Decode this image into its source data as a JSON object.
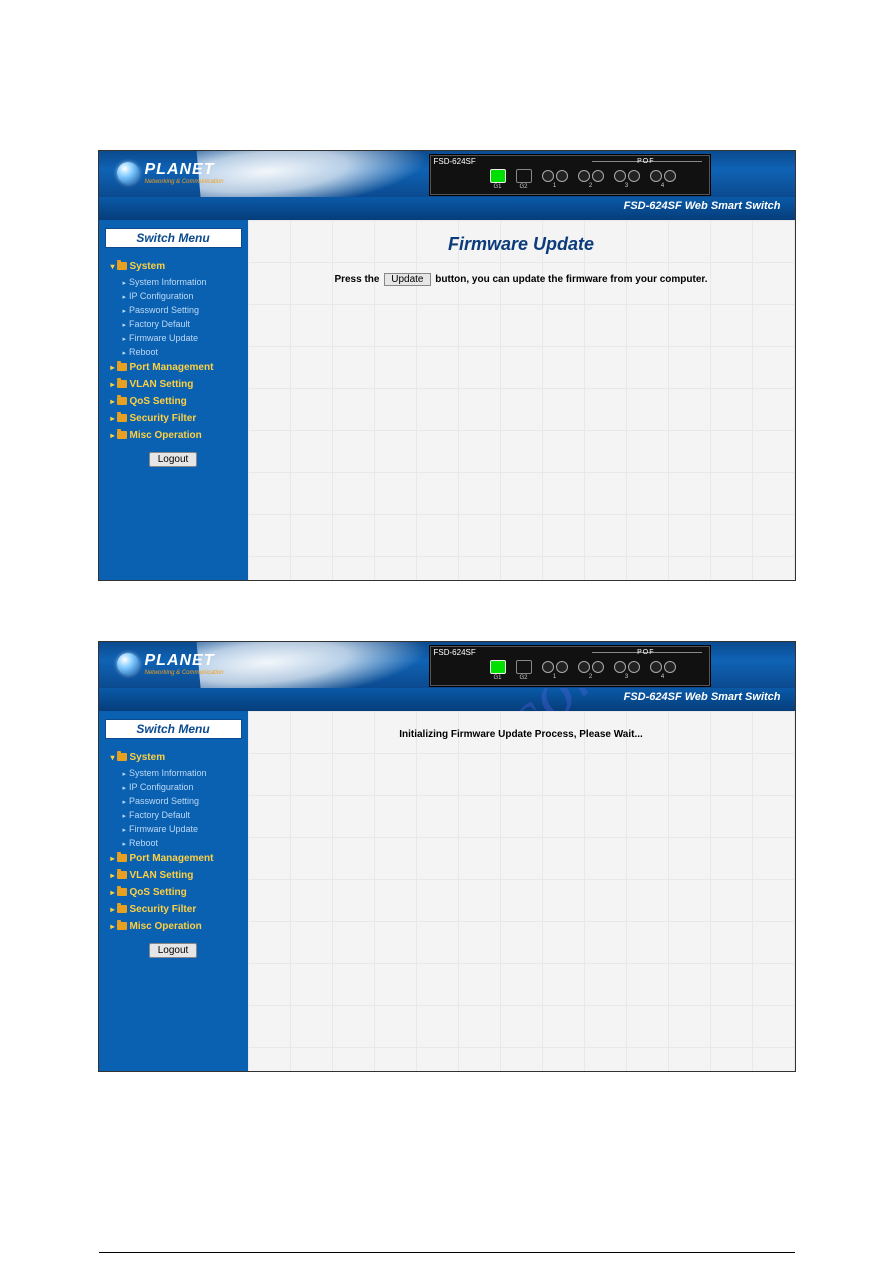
{
  "watermark_text": "nualshive.com",
  "screenshots": [
    {
      "device_model": "FSD-624SF",
      "logo_text": "PLANET",
      "logo_sub": "Networking & Communication",
      "pof_label": "POF",
      "ports": {
        "g_labels": [
          "G1",
          "G2"
        ],
        "pof_labels": [
          "1",
          "2",
          "3",
          "4"
        ],
        "g1_color": "#00e000"
      },
      "product_bar": "FSD-624SF Web Smart Switch",
      "menu_title": "Switch Menu",
      "menu": [
        {
          "label": "System",
          "expanded": true,
          "children": [
            "System Information",
            "IP Configuration",
            "Password Setting",
            "Factory Default",
            "Firmware Update",
            "Reboot"
          ]
        },
        {
          "label": "Port Management",
          "expanded": false
        },
        {
          "label": "VLAN Setting",
          "expanded": false
        },
        {
          "label": "QoS Setting",
          "expanded": false
        },
        {
          "label": "Security Filter",
          "expanded": false
        },
        {
          "label": "Misc Operation",
          "expanded": false
        }
      ],
      "logout_label": "Logout",
      "main": {
        "title": "Firmware Update",
        "instruction_pre": "Press the",
        "button_label": "Update",
        "instruction_post": "button, you can update the firmware from your computer."
      }
    },
    {
      "device_model": "FSD-624SF",
      "logo_text": "PLANET",
      "logo_sub": "Networking & Communication",
      "pof_label": "POF",
      "ports": {
        "g_labels": [
          "G1",
          "G2"
        ],
        "pof_labels": [
          "1",
          "2",
          "3",
          "4"
        ],
        "g1_color": "#00e000"
      },
      "product_bar": "FSD-624SF Web Smart Switch",
      "menu_title": "Switch Menu",
      "menu": [
        {
          "label": "System",
          "expanded": true,
          "children": [
            "System Information",
            "IP Configuration",
            "Password Setting",
            "Factory Default",
            "Firmware Update",
            "Reboot"
          ]
        },
        {
          "label": "Port Management",
          "expanded": false
        },
        {
          "label": "VLAN Setting",
          "expanded": false
        },
        {
          "label": "QoS Setting",
          "expanded": false
        },
        {
          "label": "Security Filter",
          "expanded": false
        },
        {
          "label": "Misc Operation",
          "expanded": false
        }
      ],
      "logout_label": "Logout",
      "main": {
        "wait_message": "Initializing Firmware Update Process, Please Wait..."
      }
    }
  ],
  "colors": {
    "header_gradient": [
      "#0b4a8f",
      "#0f63b5"
    ],
    "sidebar_bg": "#0a61b2",
    "menu_label": "#ffd040",
    "submenu_label": "#bcd9f5",
    "title_color": "#0b3b7a",
    "grid_color": "#e8e8e8",
    "grid_bg": "#f4f4f4",
    "watermark_color": "rgba(90,100,230,0.35)"
  }
}
